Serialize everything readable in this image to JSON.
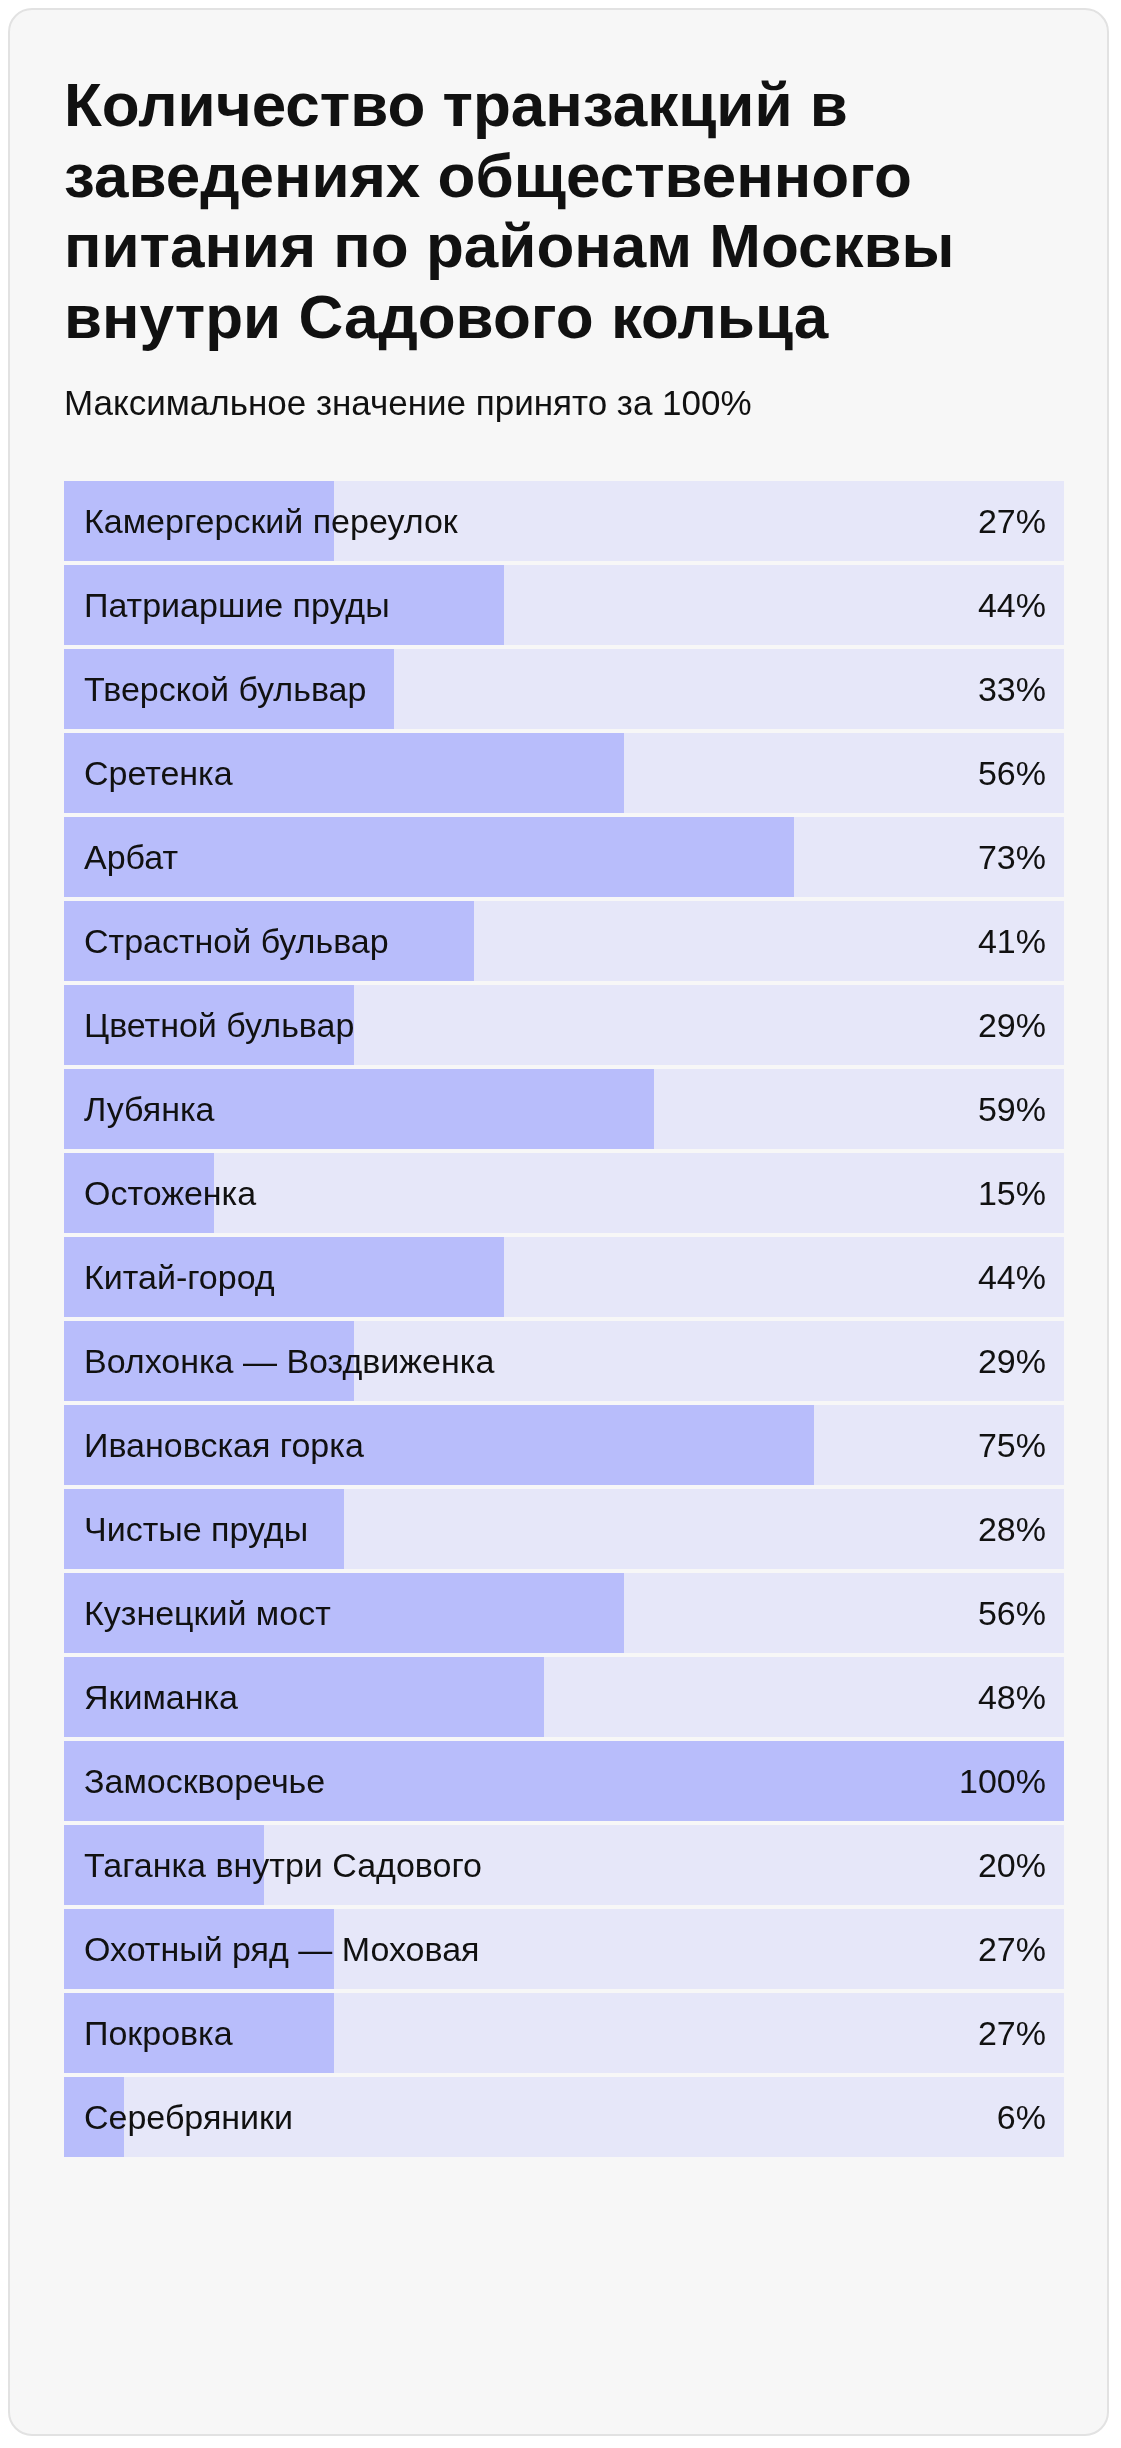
{
  "chart_data": {
    "type": "bar",
    "orientation": "horizontal",
    "title": "Количество транзакций в заведениях общественного питания по районам Москвы внутри Садового кольца",
    "subtitle": "Максимальное значение принято за 100%",
    "categories": [
      "Камергерский переулок",
      "Патриаршие пруды",
      "Тверской бульвар",
      "Сретенка",
      "Арбат",
      "Страстной бульвар",
      "Цветной бульвар",
      "Лубянка",
      "Остоженка",
      "Китай-город",
      "Волхонка — Воздвиженка",
      "Ивановская горка",
      "Чистые пруды",
      "Кузнецкий мост",
      "Якиманка",
      "Замоскворечье",
      "Таганка внутри Садового",
      "Охотный ряд — Моховая",
      "Покровка",
      "Серебряники"
    ],
    "values": [
      27,
      44,
      33,
      56,
      73,
      41,
      29,
      59,
      15,
      44,
      29,
      75,
      28,
      56,
      48,
      100,
      20,
      27,
      27,
      6
    ],
    "value_labels": [
      "27%",
      "44%",
      "33%",
      "56%",
      "73%",
      "41%",
      "29%",
      "59%",
      "15%",
      "44%",
      "29%",
      "75%",
      "28%",
      "56%",
      "48%",
      "100%",
      "20%",
      "27%",
      "27%",
      "6%"
    ],
    "color": "#b8bdfb",
    "tick_labels": false
  }
}
